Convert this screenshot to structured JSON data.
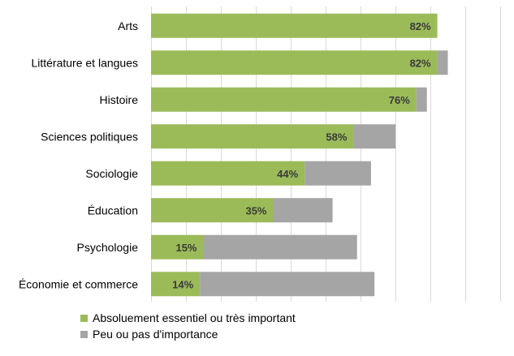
{
  "chart_data": {
    "type": "bar",
    "orientation": "horizontal",
    "stacked": true,
    "categories": [
      "Arts",
      "Littérature et langues",
      "Histoire",
      "Sciences politiques",
      "Sociologie",
      "Éducation",
      "Psychologie",
      "Économie et commerce"
    ],
    "series": [
      {
        "name": "Absoluement essentiel ou très important",
        "color": "#9bbb59",
        "values": [
          82,
          82,
          76,
          58,
          44,
          35,
          15,
          14
        ],
        "labels": [
          "82%",
          "82%",
          "76%",
          "58%",
          "44%",
          "35%",
          "15%",
          "14%"
        ]
      },
      {
        "name": "Peu ou pas d'importance",
        "color": "#a5a5a5",
        "values": [
          0,
          3,
          3,
          12,
          19,
          17,
          44,
          50
        ]
      }
    ],
    "xlim": [
      0,
      100
    ],
    "grid": true,
    "legend_position": "bottom-left",
    "title": "",
    "xlabel": "",
    "ylabel": ""
  }
}
